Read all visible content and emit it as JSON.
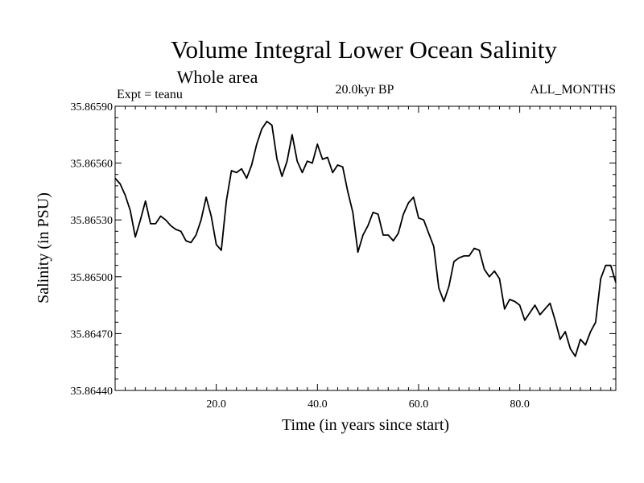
{
  "chart_data": {
    "type": "line",
    "title": "Volume Integral Lower Ocean Salinity",
    "subtitle": "Whole area",
    "expt_label": "Expt = teanu",
    "period_label": "20.0kyr BP",
    "months_label": "ALL_MONTHS",
    "xlabel": "Time (in years since start)",
    "ylabel": "Salinity (in PSU)",
    "xlim": [
      0,
      99
    ],
    "ylim": [
      35.8644,
      35.8659
    ],
    "x_ticks": [
      20,
      40,
      60,
      80
    ],
    "x_tick_labels": [
      "20.0",
      "40.0",
      "60.0",
      "80.0"
    ],
    "y_ticks": [
      35.8644,
      35.8647,
      35.865,
      35.8653,
      35.8656,
      35.8659
    ],
    "y_tick_labels": [
      "35.86440",
      "35.86470",
      "35.86500",
      "35.86530",
      "35.86560",
      "35.86590"
    ],
    "grid": false,
    "series": [
      {
        "name": "Salinity",
        "color": "#000000",
        "x": [
          0,
          1,
          2,
          3,
          4,
          5,
          6,
          7,
          8,
          9,
          10,
          11,
          12,
          13,
          14,
          15,
          16,
          17,
          18,
          19,
          20,
          21,
          22,
          23,
          24,
          25,
          26,
          27,
          28,
          29,
          30,
          31,
          32,
          33,
          34,
          35,
          36,
          37,
          38,
          39,
          40,
          41,
          42,
          43,
          44,
          45,
          46,
          47,
          48,
          49,
          50,
          51,
          52,
          53,
          54,
          55,
          56,
          57,
          58,
          59,
          60,
          61,
          62,
          63,
          64,
          65,
          66,
          67,
          68,
          69,
          70,
          71,
          72,
          73,
          74,
          75,
          76,
          77,
          78,
          79,
          80,
          81,
          82,
          83,
          84,
          85,
          86,
          87,
          88,
          89,
          90,
          91,
          92,
          93,
          94,
          95,
          96,
          97,
          98,
          99
        ],
        "values": [
          35.86552,
          35.86549,
          35.86543,
          35.86535,
          35.86521,
          35.8653,
          35.8654,
          35.86528,
          35.86528,
          35.86532,
          35.8653,
          35.86527,
          35.86525,
          35.86524,
          35.86519,
          35.86518,
          35.86522,
          35.8653,
          35.86542,
          35.86532,
          35.86517,
          35.86514,
          35.8654,
          35.86556,
          35.86555,
          35.86557,
          35.86552,
          35.86559,
          35.8657,
          35.86578,
          35.86582,
          35.8658,
          35.86562,
          35.86553,
          35.86561,
          35.86575,
          35.86561,
          35.86555,
          35.86561,
          35.8656,
          35.8657,
          35.86562,
          35.86563,
          35.86555,
          35.86559,
          35.86558,
          35.86545,
          35.86534,
          35.86513,
          35.86522,
          35.86527,
          35.86534,
          35.86533,
          35.86522,
          35.86522,
          35.86519,
          35.86523,
          35.86533,
          35.86539,
          35.86542,
          35.86531,
          35.8653,
          35.86523,
          35.86516,
          35.86494,
          35.86487,
          35.86495,
          35.86508,
          35.8651,
          35.86511,
          35.86511,
          35.86515,
          35.86514,
          35.86504,
          35.865,
          35.86503,
          35.86499,
          35.86483,
          35.86488,
          35.86487,
          35.86485,
          35.86477,
          35.86481,
          35.86485,
          35.8648,
          35.86483,
          35.86486,
          35.86477,
          35.86467,
          35.86471,
          35.86462,
          35.86458,
          35.86467,
          35.86464,
          35.86471,
          35.86476,
          35.86499,
          35.86506,
          35.86506,
          35.86497
        ]
      }
    ]
  }
}
